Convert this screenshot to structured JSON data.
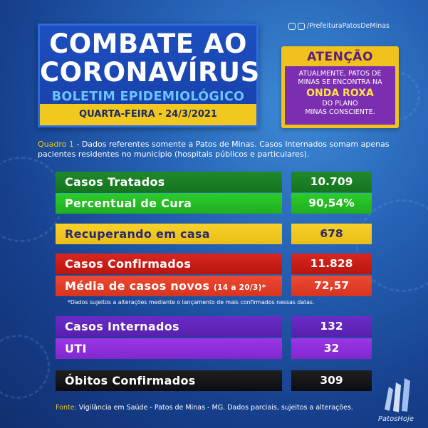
{
  "header": {
    "title_line1": "COMBATE AO",
    "title_line2": "CORONAVÍRUS",
    "subtitle": "BOLETIM EPIDEMIOLÓGICO",
    "date": "QUARTA-FEIRA - 24/3/2021"
  },
  "social": {
    "handle": "/PrefeituraPatosDeMinas",
    "icons": [
      "facebook-icon",
      "instagram-icon"
    ]
  },
  "attention": {
    "title": "ATENÇÃO",
    "line1": "ATUALMENTE, PATOS DE",
    "line2": "MINAS SE ENCONTRA NA",
    "emphasis": "ONDA ROXA",
    "line3": "DO PLANO",
    "line4": "MINAS CONSCIENTE."
  },
  "caption": {
    "label": "Quadro 1",
    "text": " - Dados referentes somente a Patos de Minas. Casos Internados somam apenas pacientes residentes no município (hospitais públicos e particulares)."
  },
  "rows": [
    {
      "label": "Casos Tratados",
      "value": "10.709"
    },
    {
      "label": "Percentual de Cura",
      "value": "90,54%"
    },
    {
      "label": "Recuperando em casa",
      "value": "678"
    },
    {
      "label": "Casos Confirmados",
      "value": "11.828"
    },
    {
      "label": "Média de casos novos",
      "label_small": "(14 a 20/3)*",
      "value": "72,57"
    },
    {
      "label": "Casos Internados",
      "value": "132"
    },
    {
      "label": "UTI",
      "value": "32"
    },
    {
      "label": "Óbitos Confirmados",
      "value": "309"
    }
  ],
  "note": "*Dados sujeitos a alterações mediante o lançamento de mais confirmados nessas datas.",
  "footer": {
    "label": "Fonte:",
    "text": " Vigilância em Saúde - Patos de Minas - MG. Dados parciais, sujeitos a alterações."
  },
  "brand": "PatosHoje",
  "colors": {
    "background": "#2561b4",
    "yellow": "#f2c81e",
    "purple": "#7b2fb0",
    "green": "#1f8a2a",
    "red": "#d8261f",
    "black": "#111114"
  }
}
